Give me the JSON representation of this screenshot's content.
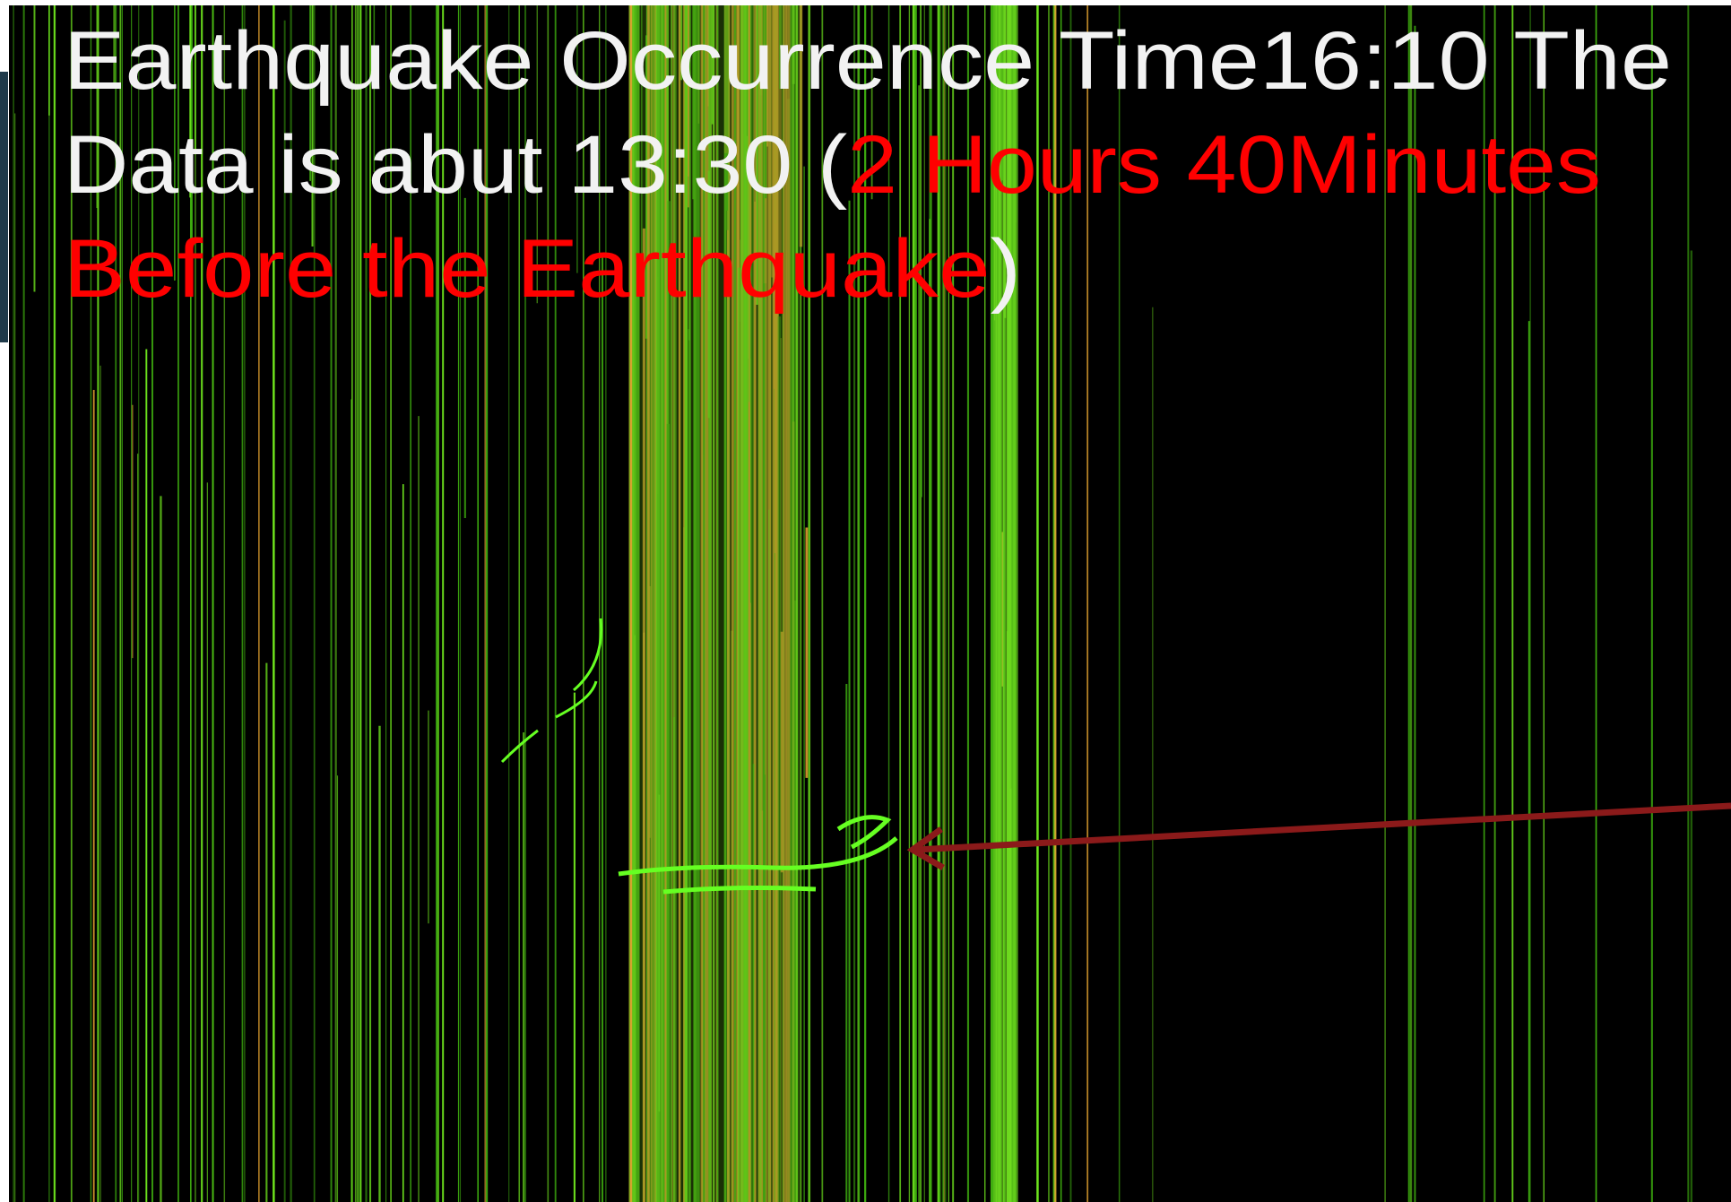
{
  "title": {
    "lines": [
      [
        {
          "text": "Earthquake Occurrence Time16:10 The",
          "color": "#f2f2f2"
        }
      ],
      [
        {
          "text": "Data is abut 13:30 (",
          "color": "#f2f2f2"
        },
        {
          "text": "2 Hours 40Minutes",
          "color": "#ff0000"
        }
      ],
      [
        {
          "text": "Before the Earthquake",
          "color": "#ff0000"
        },
        {
          "text": ")",
          "color": "#f2f2f2"
        }
      ]
    ]
  }
}
